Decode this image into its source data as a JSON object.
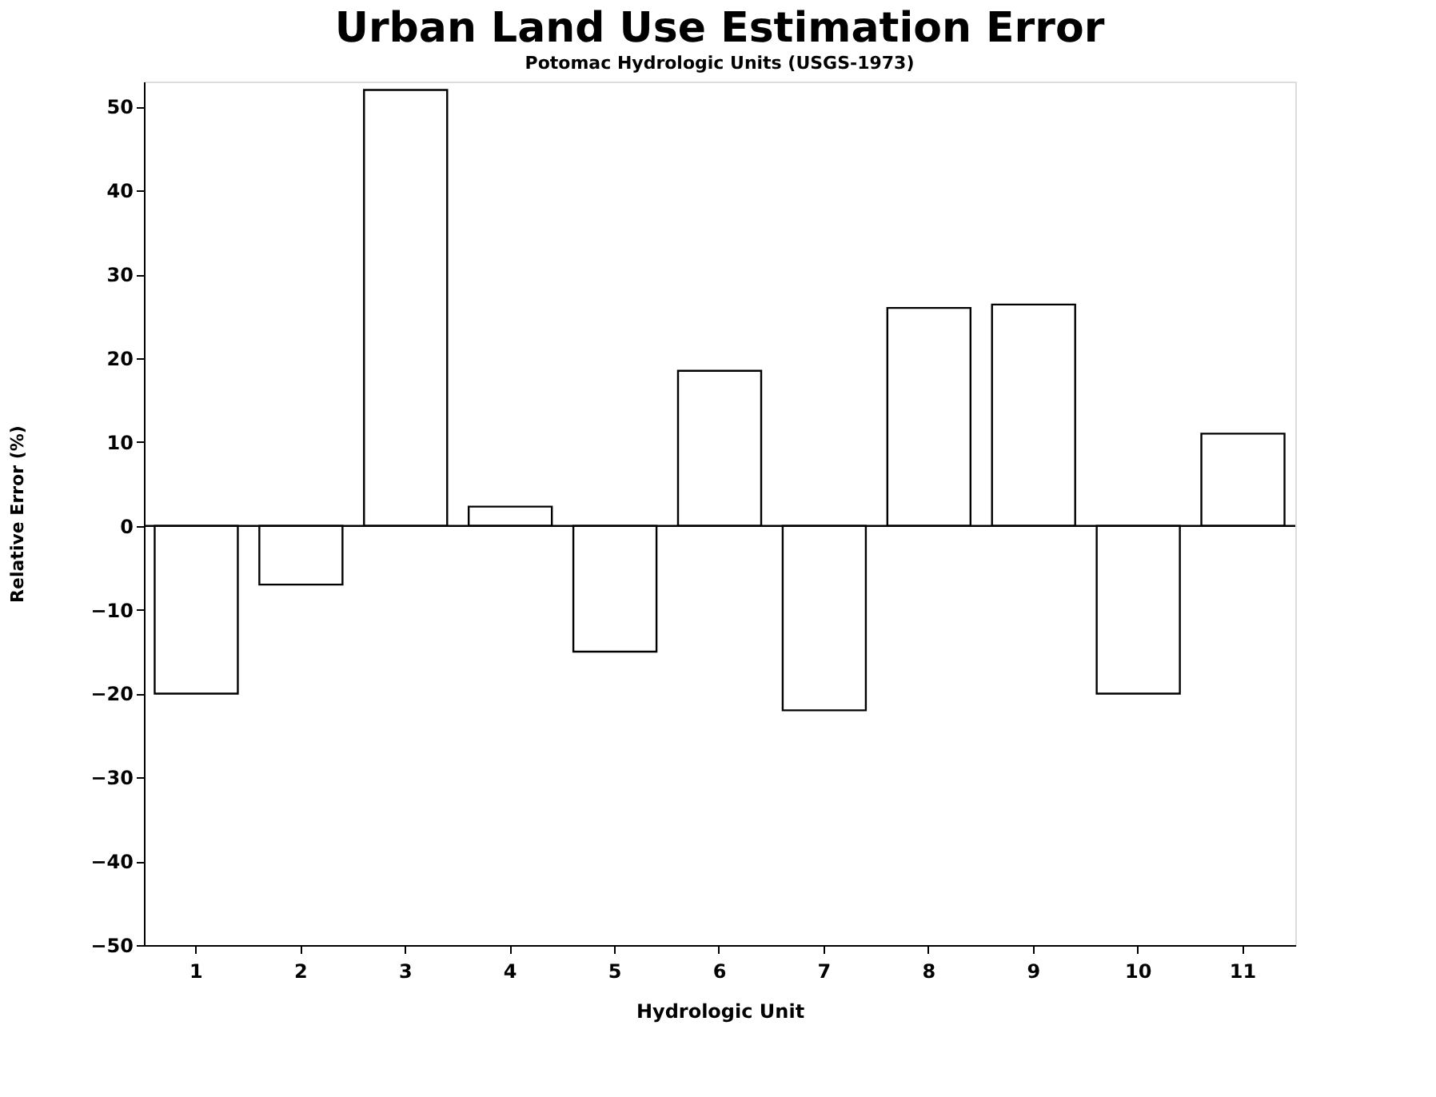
{
  "chart_data": {
    "type": "bar",
    "title": "Urban Land Use Estimation Error",
    "subtitle": "Potomac Hydrologic Units (USGS-1973)",
    "xlabel": "Hydrologic Unit",
    "ylabel": "Relative Error (%)",
    "categories": [
      "1",
      "2",
      "3",
      "4",
      "5",
      "6",
      "7",
      "8",
      "9",
      "10",
      "11"
    ],
    "values": [
      -20,
      -7,
      52,
      2.3,
      -15,
      18.5,
      -22,
      26,
      26.4,
      -20,
      11
    ],
    "color": "#ffffff",
    "ylim": [
      -50,
      53
    ],
    "yticks": [
      -50,
      -40,
      -30,
      -20,
      -10,
      0,
      10,
      20,
      30,
      40,
      50
    ],
    "ref_lines": [
      {
        "axis": "y",
        "value": 0,
        "color": "#000000"
      }
    ],
    "grid": false
  }
}
